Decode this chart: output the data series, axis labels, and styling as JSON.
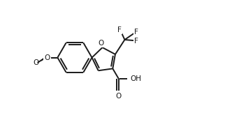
{
  "background_color": "#ffffff",
  "line_color": "#1a1a1a",
  "line_width": 1.4,
  "figsize": [
    3.32,
    1.75
  ],
  "dpi": 100,
  "xlim": [
    0.0,
    10.0
  ],
  "ylim": [
    -1.5,
    5.5
  ]
}
